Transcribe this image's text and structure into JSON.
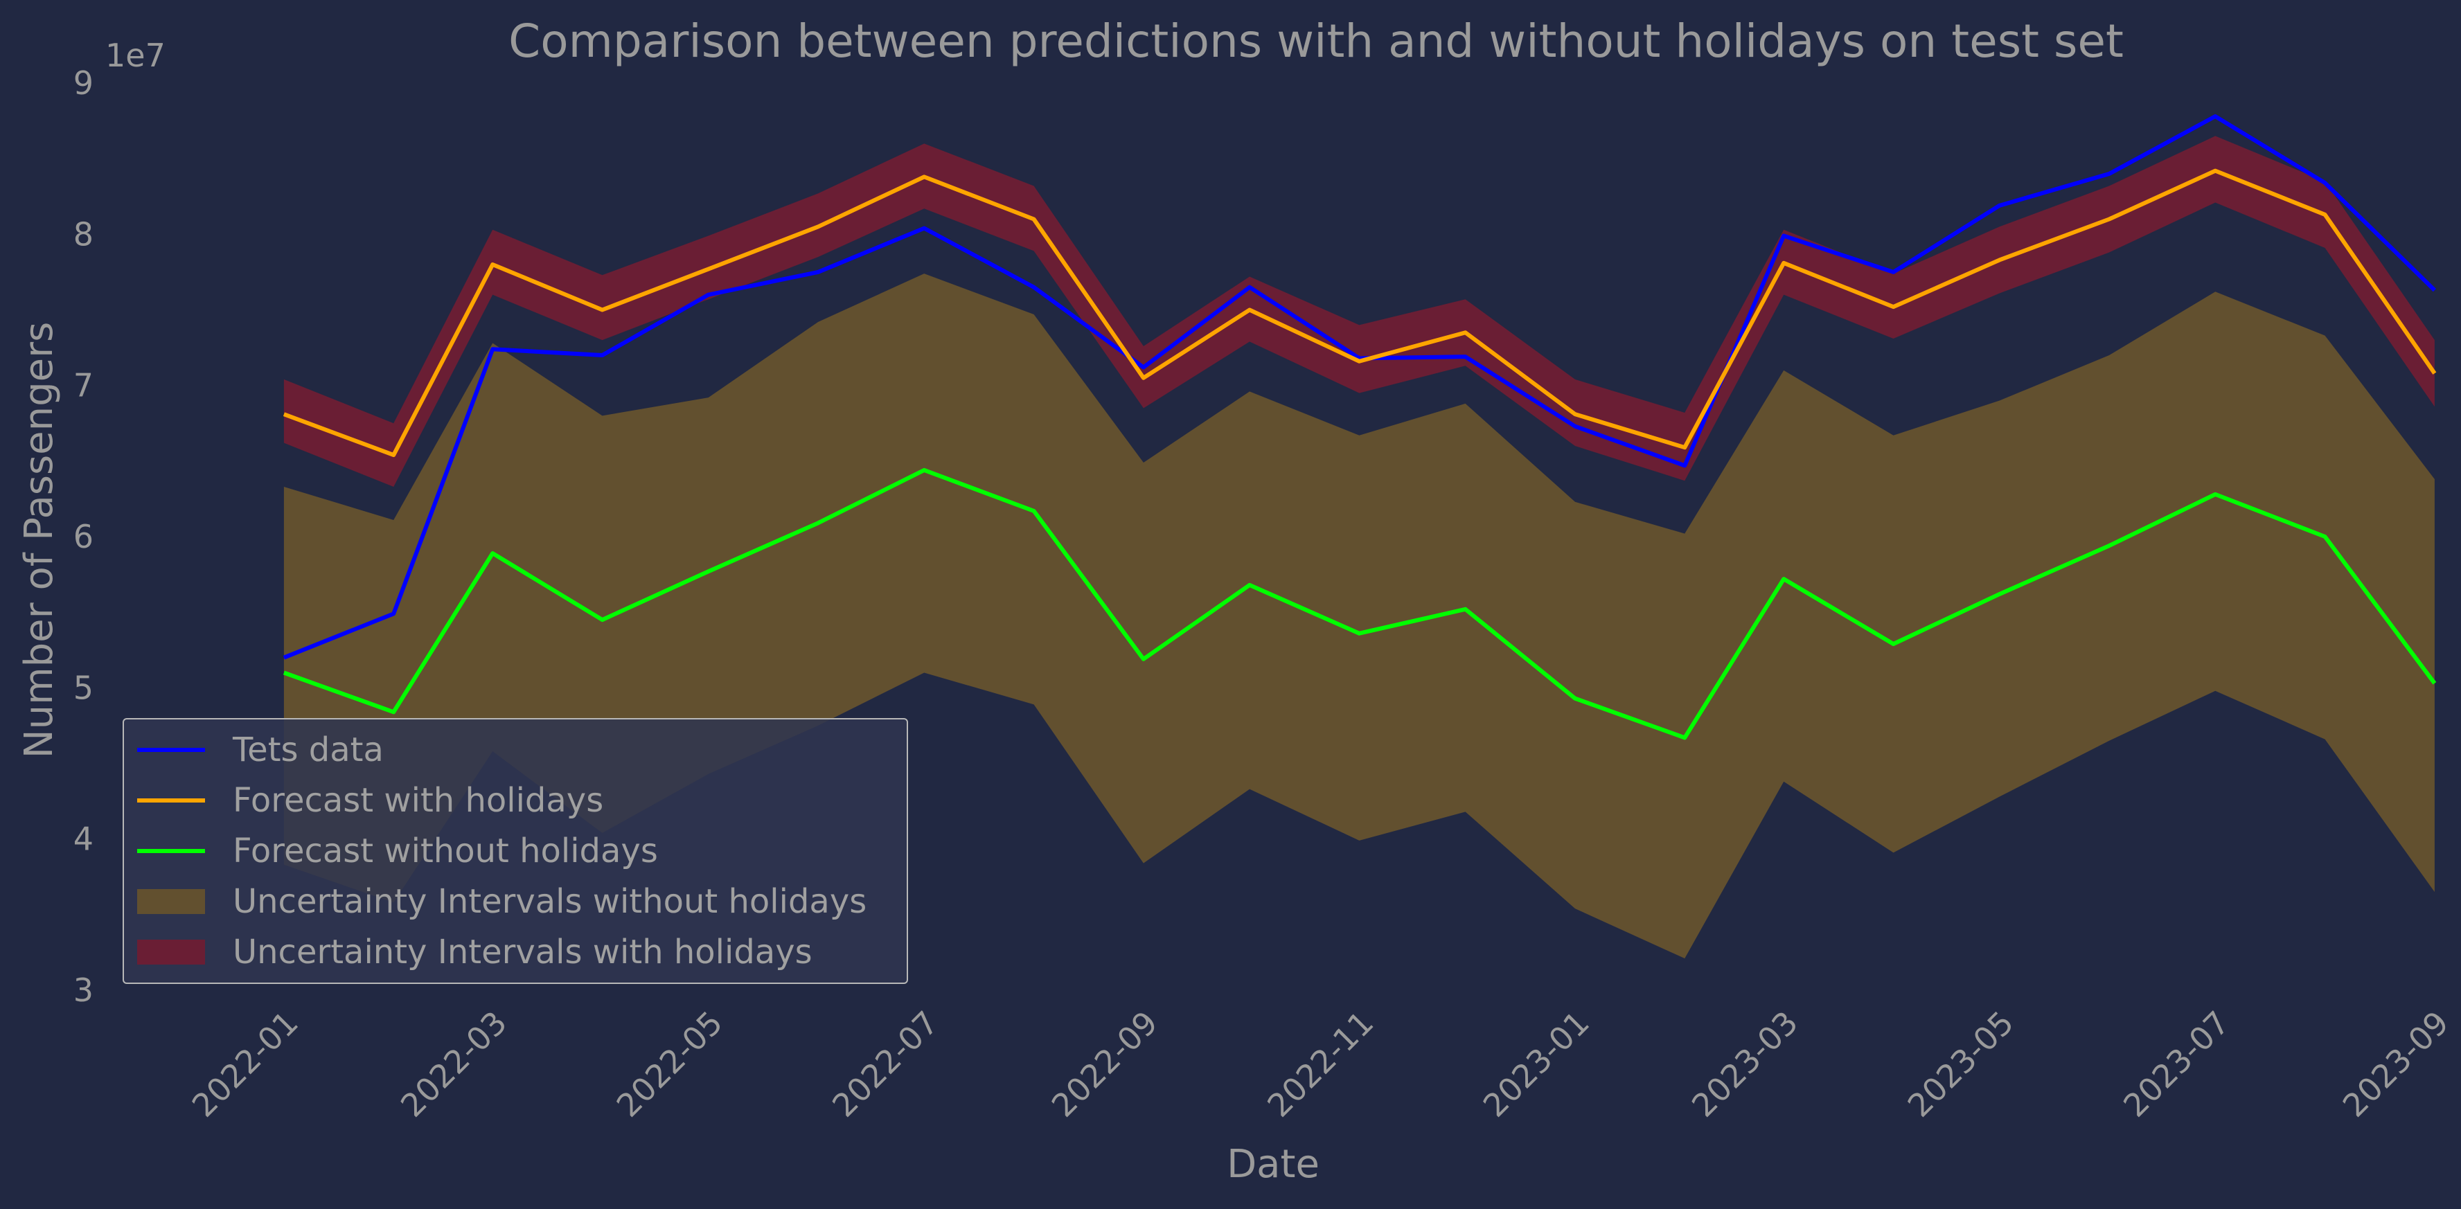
{
  "chart_data": {
    "type": "line",
    "title": "Comparison between predictions with and without holidays on test set",
    "xlabel": "Date",
    "ylabel": "Number of Passengers",
    "y_multiplier_label": "1e7",
    "ylim": [
      3,
      9
    ],
    "xlim": [
      "2021-11-15",
      "2023-09-01"
    ],
    "y_ticks": [
      3,
      4,
      5,
      6,
      7,
      8,
      9
    ],
    "x_ticks": [
      "2022-01",
      "2022-03",
      "2022-05",
      "2022-07",
      "2022-09",
      "2022-11",
      "2023-01",
      "2023-03",
      "2023-05",
      "2023-07",
      "2023-09"
    ],
    "x": [
      "2021-12-31",
      "2022-01-31",
      "2022-02-28",
      "2022-03-31",
      "2022-04-30",
      "2022-05-31",
      "2022-06-30",
      "2022-07-31",
      "2022-08-31",
      "2022-09-30",
      "2022-10-31",
      "2022-11-30",
      "2022-12-31",
      "2023-01-31",
      "2023-02-28",
      "2023-03-31",
      "2023-04-30",
      "2023-05-31",
      "2023-06-30",
      "2023-07-31",
      "2023-08-31"
    ],
    "series": [
      {
        "name": "Tets data",
        "color": "#0000ff",
        "values": [
          5.2,
          5.49,
          7.24,
          7.2,
          7.6,
          7.75,
          8.04,
          7.65,
          7.12,
          7.65,
          7.18,
          7.19,
          6.73,
          6.47,
          7.99,
          7.75,
          8.19,
          8.4,
          8.78,
          8.34,
          7.63
        ]
      },
      {
        "name": "Forecast with holidays",
        "color": "#ffa500",
        "values": [
          6.81,
          6.54,
          7.8,
          7.5,
          7.77,
          8.05,
          8.38,
          8.1,
          7.05,
          7.5,
          7.16,
          7.35,
          6.81,
          6.59,
          7.81,
          7.52,
          7.83,
          8.1,
          8.42,
          8.13,
          7.08
        ]
      },
      {
        "name": "Forecast without holidays",
        "color": "#00ff00",
        "values": [
          5.1,
          4.84,
          5.89,
          5.45,
          5.77,
          6.09,
          6.44,
          6.17,
          5.19,
          5.68,
          5.36,
          5.52,
          4.93,
          4.67,
          5.72,
          5.29,
          5.62,
          5.94,
          6.28,
          6.0,
          5.03
        ]
      }
    ],
    "intervals": [
      {
        "name": "Uncertainty Intervals without holidays",
        "color": "#62502f",
        "lower": [
          3.83,
          3.58,
          4.58,
          4.04,
          4.43,
          4.75,
          5.1,
          4.89,
          3.84,
          4.33,
          3.99,
          4.18,
          3.54,
          3.21,
          4.38,
          3.91,
          4.28,
          4.65,
          4.98,
          4.66,
          3.65
        ],
        "upper": [
          6.33,
          6.11,
          7.28,
          6.8,
          6.92,
          7.42,
          7.74,
          7.47,
          6.49,
          6.96,
          6.67,
          6.88,
          6.23,
          6.02,
          7.1,
          6.67,
          6.9,
          7.2,
          7.62,
          7.33,
          6.38
        ]
      },
      {
        "name": "Uncertainty Intervals with holidays",
        "color": "#6a1e34",
        "lower": [
          6.62,
          6.33,
          7.6,
          7.3,
          7.57,
          7.85,
          8.17,
          7.89,
          6.85,
          7.29,
          6.95,
          7.13,
          6.6,
          6.37,
          7.6,
          7.31,
          7.61,
          7.88,
          8.21,
          7.91,
          6.86
        ],
        "upper": [
          7.04,
          6.75,
          8.03,
          7.73,
          7.99,
          8.27,
          8.6,
          8.32,
          7.26,
          7.72,
          7.4,
          7.57,
          7.04,
          6.82,
          8.03,
          7.74,
          8.05,
          8.32,
          8.65,
          8.35,
          7.3
        ]
      }
    ],
    "legend": {
      "placement": "lower-left",
      "entries": [
        "Tets data",
        "Forecast with holidays",
        "Forecast without holidays",
        "Uncertainty Intervals without holidays",
        "Uncertainty Intervals with holidays"
      ]
    },
    "background_color": "#212842",
    "text_color": "#9a9a9a",
    "grid": false
  }
}
